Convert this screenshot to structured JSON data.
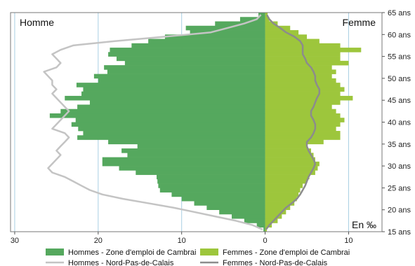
{
  "chart_data": {
    "type": "bar",
    "orientation": "population-pyramid",
    "corner_labels": {
      "left": "Homme",
      "right": "Femme",
      "unit": "En ‰"
    },
    "x_ticks": [
      {
        "value": -30,
        "label": "30"
      },
      {
        "value": -20,
        "label": "20"
      },
      {
        "value": -10,
        "label": "10"
      },
      {
        "value": 0,
        "label": "0"
      },
      {
        "value": 10,
        "label": "10"
      }
    ],
    "y_ticks": [
      {
        "value": 15,
        "label": "15 ans"
      },
      {
        "value": 20,
        "label": "20 ans"
      },
      {
        "value": 25,
        "label": "25 ans"
      },
      {
        "value": 30,
        "label": "30 ans"
      },
      {
        "value": 35,
        "label": "35 ans"
      },
      {
        "value": 40,
        "label": "40 ans"
      },
      {
        "value": 45,
        "label": "45 ans"
      },
      {
        "value": 50,
        "label": "50 ans"
      },
      {
        "value": 55,
        "label": "55 ans"
      },
      {
        "value": 60,
        "label": "60 ans"
      },
      {
        "value": 65,
        "label": "65 ans"
      }
    ],
    "xlim": [
      -30.5,
      14
    ],
    "ylim": [
      15,
      65
    ],
    "grid": true,
    "legend_position": "bottom",
    "colors": {
      "hommes_bars": "#55a85e",
      "femmes_bars": "#9dc63c",
      "hommes_line": "#c4c4c4",
      "femmes_line": "#8c8c8c",
      "grid": "#a9cfe3"
    },
    "ages": [
      15,
      16,
      17,
      18,
      19,
      20,
      21,
      22,
      23,
      24,
      25,
      26,
      27,
      28,
      29,
      30,
      31,
      32,
      33,
      34,
      35,
      36,
      37,
      38,
      39,
      40,
      41,
      42,
      43,
      44,
      45,
      46,
      47,
      48,
      49,
      50,
      51,
      52,
      53,
      54,
      55,
      56,
      57,
      58,
      59,
      60,
      61,
      62,
      63,
      64
    ],
    "series": [
      {
        "name": "Hommes - Zone d'emploi de Cambrai",
        "kind": "bar",
        "side": "left",
        "values": [
          0.2,
          1.0,
          2.5,
          4.0,
          5.5,
          7.0,
          8.5,
          10.0,
          11.2,
          12.6,
          12.8,
          12.9,
          13.0,
          15.5,
          17.5,
          19.5,
          19.5,
          16.5,
          17.2,
          15.3,
          18.8,
          22.5,
          21.8,
          22.4,
          23.2,
          22.7,
          25.8,
          24.5,
          22.5,
          21.0,
          24.0,
          22.0,
          21.8,
          22.6,
          20.0,
          20.5,
          18.9,
          19.3,
          16.8,
          17.8,
          18.8,
          18.6,
          16.0,
          14.0,
          12.0,
          9.0,
          9.5,
          6.0,
          3.0,
          0.8
        ]
      },
      {
        "name": "Femmes - Zone d'emploi de Cambrai",
        "kind": "bar",
        "side": "right",
        "values": [
          0.2,
          0.8,
          1.5,
          2.0,
          2.5,
          3.0,
          3.5,
          3.8,
          4.0,
          4.2,
          4.5,
          5.0,
          5.3,
          6.0,
          6.3,
          6.5,
          6.0,
          5.8,
          5.5,
          5.0,
          7.0,
          9.0,
          9.0,
          8.5,
          9.0,
          9.5,
          9.0,
          8.5,
          8.0,
          9.0,
          10.5,
          9.0,
          9.5,
          9.0,
          8.5,
          8.0,
          8.5,
          8.0,
          10.0,
          9.0,
          9.0,
          11.5,
          9.0,
          6.5,
          5.0,
          4.0,
          3.0,
          1.5,
          0.5,
          0.3
        ]
      },
      {
        "name": "Hommes - Nord-Pas-de-Calais",
        "kind": "line",
        "side": "left",
        "values": [
          0.3,
          1.5,
          3.5,
          6.0,
          8.5,
          11.0,
          14.0,
          17.0,
          19.5,
          21.0,
          22.0,
          23.0,
          24.0,
          25.5,
          26.0,
          25.5,
          25.0,
          24.5,
          25.0,
          24.5,
          24.0,
          23.5,
          24.0,
          25.5,
          25.0,
          24.5,
          24.0,
          23.5,
          24.0,
          24.5,
          25.0,
          25.5,
          25.0,
          25.5,
          25.5,
          26.0,
          26.5,
          25.0,
          24.5,
          25.0,
          25.5,
          24.5,
          23.0,
          18.0,
          12.0,
          6.5,
          4.5,
          2.5,
          1.0,
          0.5
        ]
      },
      {
        "name": "Femmes - Nord-Pas-de-Calais",
        "kind": "line",
        "side": "right",
        "values": [
          0.1,
          0.5,
          1.0,
          1.5,
          2.0,
          2.5,
          3.2,
          3.8,
          4.2,
          4.5,
          4.8,
          5.0,
          5.2,
          5.5,
          5.8,
          6.0,
          5.8,
          5.5,
          5.2,
          5.0,
          5.0,
          5.5,
          5.8,
          6.0,
          6.0,
          5.8,
          5.5,
          5.5,
          5.8,
          6.0,
          6.2,
          6.5,
          6.5,
          6.2,
          6.0,
          6.0,
          5.8,
          5.5,
          5.0,
          4.8,
          4.5,
          4.5,
          4.5,
          4.2,
          3.5,
          2.5,
          1.8,
          1.0,
          0.5,
          0.2
        ]
      }
    ]
  }
}
